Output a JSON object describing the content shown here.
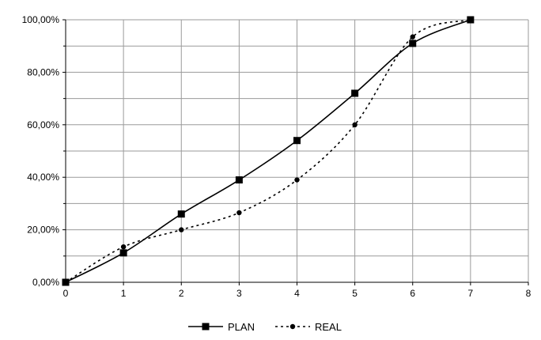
{
  "chart_data": {
    "type": "line",
    "title": "",
    "xlabel": "",
    "ylabel": "",
    "xlim": [
      0,
      8
    ],
    "ylim": [
      0,
      100
    ],
    "x_ticks": [
      "0",
      "1",
      "2",
      "3",
      "4",
      "5",
      "6",
      "7",
      "8"
    ],
    "y_ticks": [
      "0,00%",
      "20,00%",
      "40,00%",
      "60,00%",
      "80,00%",
      "100,00%"
    ],
    "grid": true,
    "legend_position": "bottom",
    "series": [
      {
        "name": "PLAN",
        "x": [
          0,
          1,
          2,
          3,
          4,
          5,
          6,
          7
        ],
        "values": [
          0,
          11.2,
          26,
          39,
          54,
          72,
          91,
          100
        ],
        "line_style": "solid",
        "marker": "square",
        "color": "#000000"
      },
      {
        "name": "REAL",
        "x": [
          0,
          1,
          2,
          3,
          4,
          5,
          6,
          7
        ],
        "values": [
          0,
          13.5,
          20,
          26.5,
          39,
          60,
          93.5,
          100
        ],
        "line_style": "dotted",
        "marker": "circle",
        "color": "#000000"
      }
    ]
  }
}
